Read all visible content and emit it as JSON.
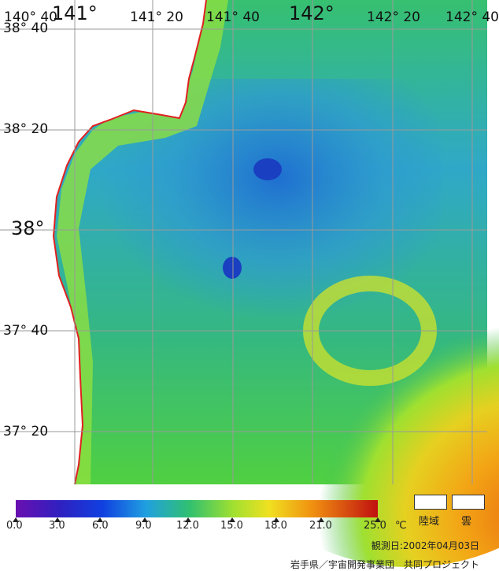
{
  "map": {
    "lon_labels": [
      "140° 40",
      "141°",
      "141° 20",
      "141° 40",
      "142°",
      "142° 20",
      "142° 40"
    ],
    "lat_labels": [
      "38° 40",
      "38° 20",
      "38°",
      "37° 40",
      "37° 20"
    ],
    "colors": {
      "ocean_cool": "#2f9fd8",
      "ocean_green": "#3fbf5f",
      "ocean_warm": "#f3a010",
      "land": "#ffffff",
      "coast": "#e02020",
      "grid": "#9a9a9a"
    }
  },
  "legend": {
    "tick_labels": [
      "0.0",
      "3.0",
      "6.0",
      "9.0",
      "12.0",
      "15.0",
      "18.0",
      "21.0",
      "25.0"
    ],
    "unit": "℃",
    "land_label": "陸域",
    "cloud_label": "雲"
  },
  "footer": {
    "date": "観測日:2002年04月03日",
    "credit": "岩手県／宇宙開発事業団　共同プロジェクト"
  }
}
